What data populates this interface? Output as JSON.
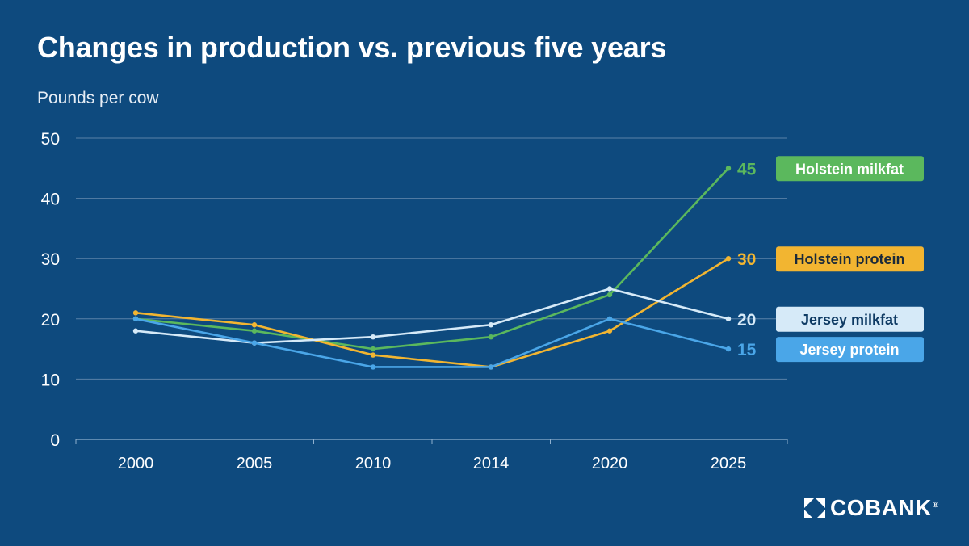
{
  "chart_data": {
    "type": "line",
    "title": "Changes in production vs. previous five years",
    "ylabel": "Pounds per cow",
    "xlabel": "",
    "categories": [
      "2000",
      "2005",
      "2010",
      "2014",
      "2020",
      "2025"
    ],
    "ylim": [
      0,
      50
    ],
    "yticks": [
      0,
      10,
      20,
      30,
      40,
      50
    ],
    "grid": true,
    "legend": "right, end-of-line labels",
    "series": [
      {
        "name": "Holstein milkfat",
        "values": [
          20,
          18,
          15,
          17,
          24,
          45
        ],
        "color": "#5bb85d",
        "end_label": "45",
        "label_text_color": "#ffffff"
      },
      {
        "name": "Holstein protein",
        "values": [
          21,
          19,
          14,
          12,
          18,
          30
        ],
        "color": "#f2b531",
        "end_label": "30",
        "label_text_color": "#1b2a3a"
      },
      {
        "name": "Jersey milkfat",
        "values": [
          18,
          16,
          17,
          19,
          25,
          20
        ],
        "color": "#d6eaf8",
        "end_label": "20",
        "label_text_color": "#0e3a63"
      },
      {
        "name": "Jersey protein",
        "values": [
          20,
          16,
          12,
          12,
          20,
          15
        ],
        "color": "#4aa6e8",
        "end_label": "15",
        "label_text_color": "#ffffff"
      }
    ]
  },
  "brand": {
    "logo_text": "COBANK",
    "logo_icon": "cobank-logo-icon",
    "background_color": "#0e4a7e"
  }
}
